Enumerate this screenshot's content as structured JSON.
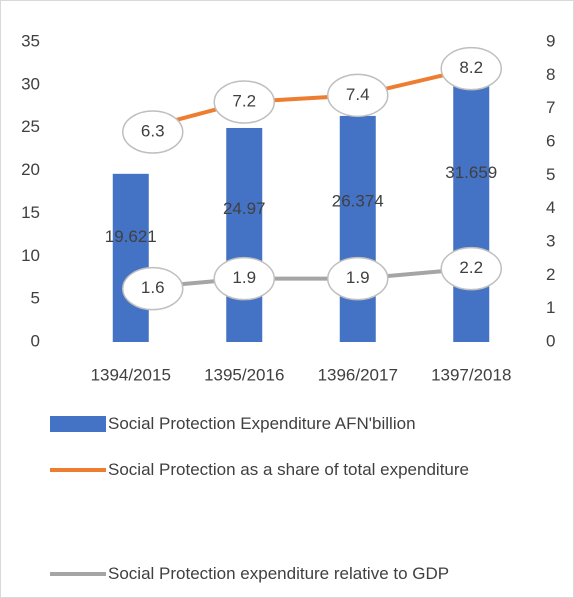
{
  "chart_data": {
    "type": "bar_line",
    "categories": [
      "1394/2015",
      "1395/2016",
      "1396/2017",
      "1397/2018"
    ],
    "series": [
      {
        "name": "Social Protection Expenditure AFN'billion",
        "type": "bar",
        "color": "#4472c4",
        "values": [
          19.621,
          24.97,
          26.374,
          31.659
        ]
      },
      {
        "name": "Social Protection as a share of total expenditure",
        "type": "line",
        "axis": "y2",
        "color": "#ed7d31",
        "values": [
          6.3,
          7.2,
          7.4,
          8.2
        ]
      },
      {
        "name": "Social Protection expenditure relative to GDP",
        "type": "line",
        "axis": "y2",
        "color": "#a5a5a5",
        "values": [
          1.6,
          1.9,
          1.9,
          2.2
        ]
      }
    ],
    "ylim": [
      0,
      35
    ],
    "yticks": [
      0,
      5,
      10,
      15,
      20,
      25,
      30,
      35
    ],
    "y2lim": [
      0,
      9
    ],
    "y2ticks": [
      0,
      1,
      2,
      3,
      4,
      5,
      6,
      7,
      8,
      9
    ],
    "grid": false,
    "legend": "bottom"
  }
}
